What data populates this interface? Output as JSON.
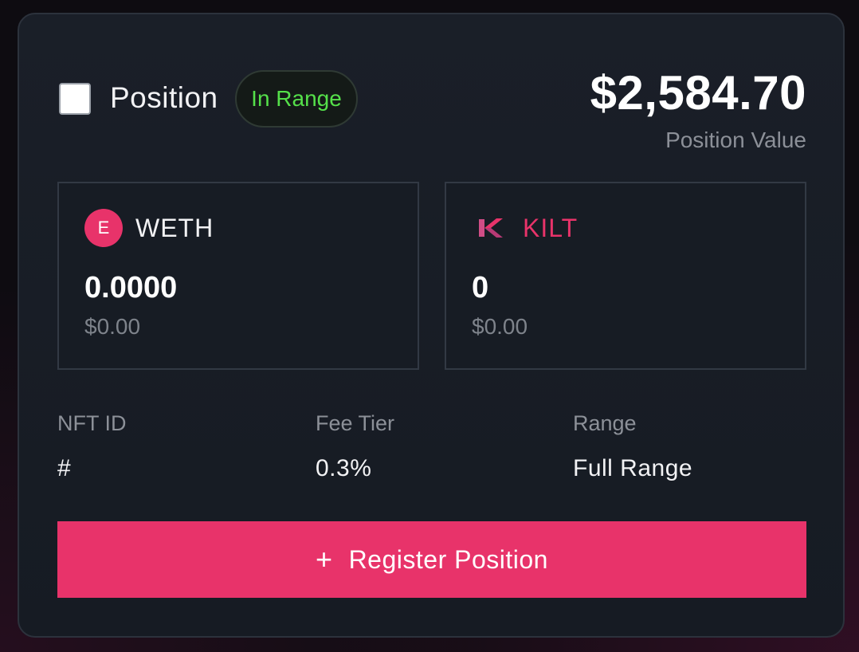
{
  "position": {
    "title": "Position",
    "status": "In Range",
    "value": "$2,584.70",
    "value_label": "Position Value"
  },
  "tokens": [
    {
      "symbol": "WETH",
      "icon": "weth-icon",
      "icon_letter": "E",
      "amount": "0.0000",
      "usd": "$0.00"
    },
    {
      "symbol": "KILT",
      "icon": "kilt-icon",
      "amount": "0",
      "usd": "$0.00"
    }
  ],
  "details": {
    "nft_id_label": "NFT ID",
    "nft_id_value": "#",
    "fee_tier_label": "Fee Tier",
    "fee_tier_value": "0.3%",
    "range_label": "Range",
    "range_value": "Full Range"
  },
  "action": {
    "icon": "plus-icon",
    "register_label": "Register Position"
  },
  "colors": {
    "accent": "#e8336a",
    "in_range": "#55e04a",
    "card_bg": "#1a1f28"
  }
}
